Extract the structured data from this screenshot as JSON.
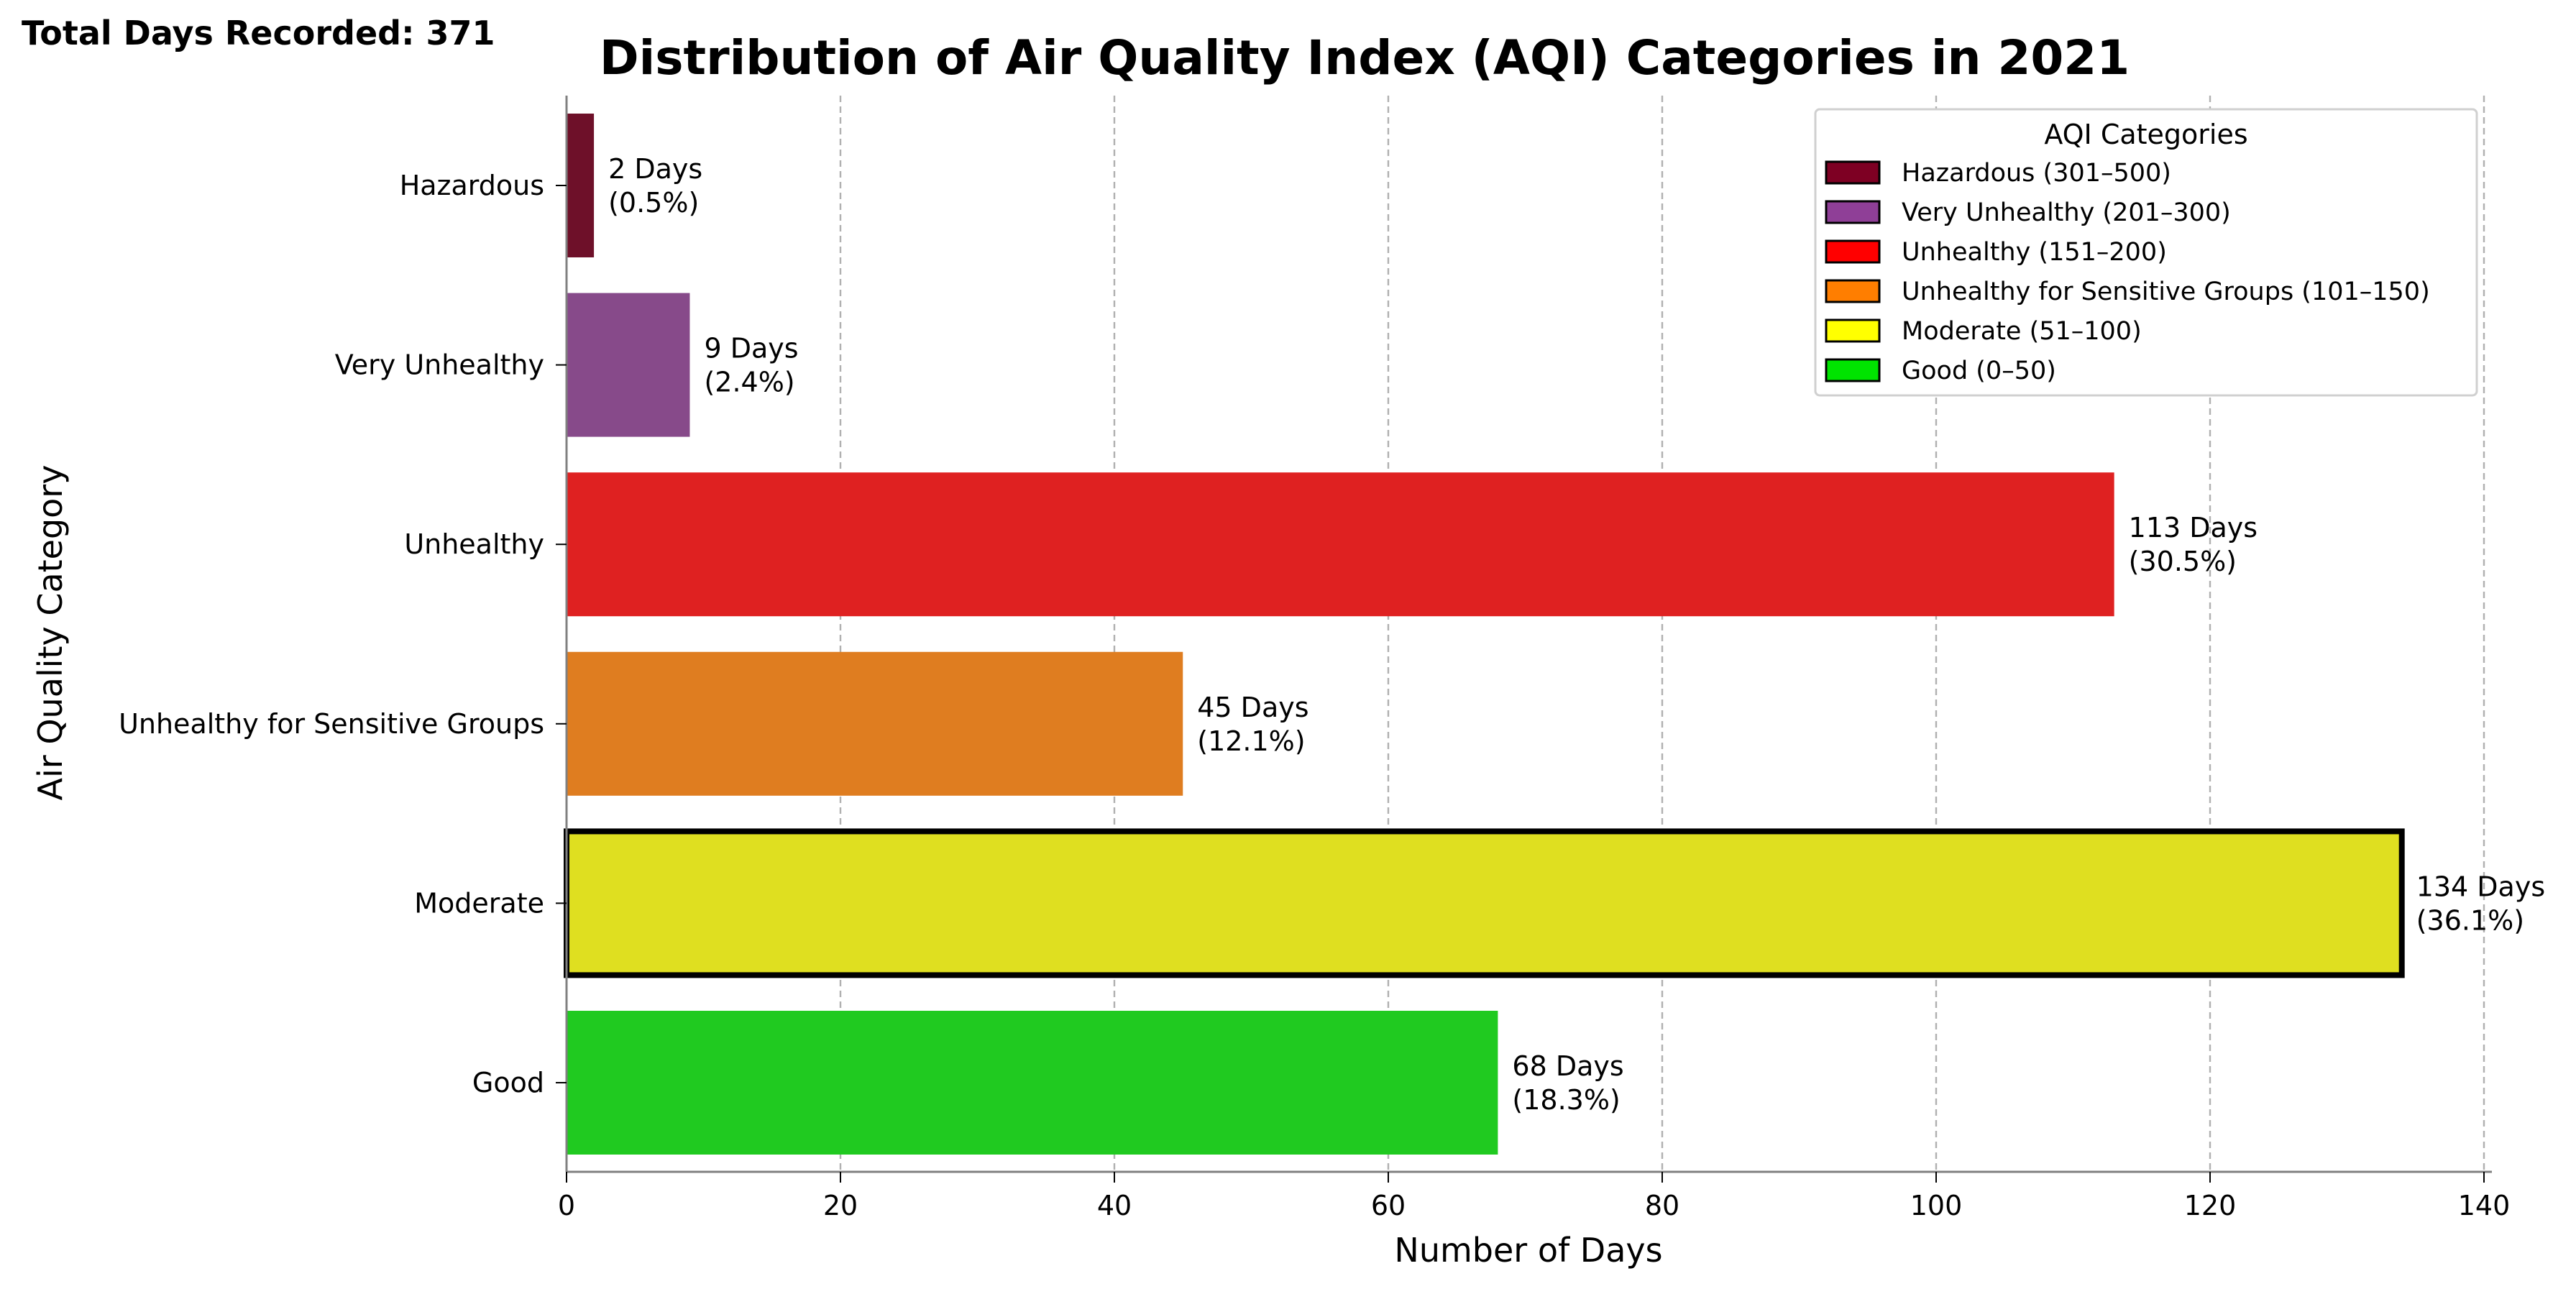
{
  "total_days_label": "Total Days Recorded: 371",
  "chart_data": {
    "type": "bar",
    "orientation": "horizontal",
    "title": "Distribution of Air Quality Index (AQI) Categories in 2021",
    "xlabel": "Number of Days",
    "ylabel": "Air Quality Category",
    "xlim": [
      0,
      140
    ],
    "xticks": [
      0,
      20,
      40,
      60,
      80,
      100,
      120,
      140
    ],
    "grid": "x-axis, dashed",
    "categories": [
      "Hazardous",
      "Very Unhealthy",
      "Unhealthy",
      "Unhealthy for Sensitive Groups",
      "Moderate",
      "Good"
    ],
    "values": [
      2,
      9,
      113,
      45,
      134,
      68
    ],
    "value_labels": [
      "2 Days",
      "9 Days",
      "113 Days",
      "45 Days",
      "134 Days",
      "68 Days"
    ],
    "percent_labels": [
      "(0.5%)",
      "(2.4%)",
      "(30.5%)",
      "(12.1%)",
      "(36.1%)",
      "(18.3%)"
    ],
    "colors": [
      "#6E1029",
      "#874A8A",
      "#DF2121",
      "#DF7D20",
      "#DFDF20",
      "#20CA20"
    ],
    "highlighted_category": "Moderate",
    "legend": {
      "title": "AQI Categories",
      "placement": "top-right",
      "entries": [
        {
          "label": "Hazardous (301–500)",
          "color": "#7E0023"
        },
        {
          "label": "Very Unhealthy (201–300)",
          "color": "#8F3F97"
        },
        {
          "label": "Unhealthy (151–200)",
          "color": "#FF0000"
        },
        {
          "label": "Unhealthy for Sensitive Groups (101–150)",
          "color": "#FF7E00"
        },
        {
          "label": "Moderate (51–100)",
          "color": "#FFFF00"
        },
        {
          "label": "Good (0–50)",
          "color": "#00E400"
        }
      ]
    }
  }
}
